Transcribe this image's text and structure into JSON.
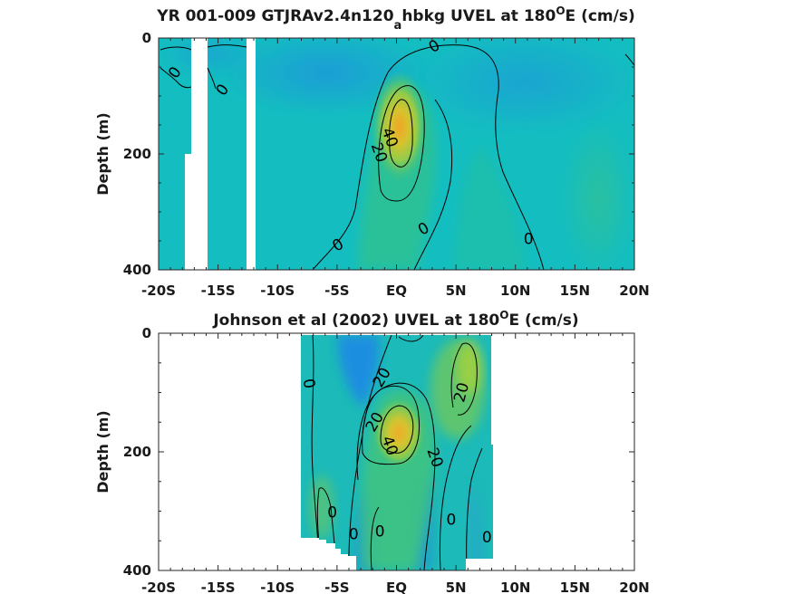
{
  "chart_data": [
    {
      "type": "heatmap",
      "title_main": "YR 001-009 GTJRAv2.4n120",
      "title_sub": "a",
      "title_rest": "hbkg UVEL at 180",
      "title_sup": "O",
      "title_end": "E (cm/s)",
      "ylabel": "Depth (m)",
      "xticks": [
        "-20S",
        "-15S",
        "-10S",
        "-5S",
        "EQ",
        "5N",
        "10N",
        "15N",
        "20N"
      ],
      "yticks": [
        "0",
        "200",
        "400"
      ],
      "xlim": [
        -20,
        20
      ],
      "ylim": [
        0,
        400
      ],
      "data_extent": [
        -20,
        20
      ],
      "missing_columns": [
        [
          -17.5,
          -16.2
        ],
        [
          -12.8,
          -12.2
        ]
      ],
      "jet_core": {
        "lat": 0.5,
        "depth": 150,
        "max_cm_s": 50
      },
      "contour_labels": [
        {
          "text": "0",
          "lat": -18.6,
          "depth": 60,
          "rot": -55
        },
        {
          "text": "0",
          "lat": -14.6,
          "depth": 90,
          "rot": -55
        },
        {
          "text": "0",
          "lat": 3.2,
          "depth": 15,
          "rot": -30
        },
        {
          "text": "0",
          "lat": -4.9,
          "depth": 358,
          "rot": -30
        },
        {
          "text": "0",
          "lat": 2.3,
          "depth": 330,
          "rot": -30
        },
        {
          "text": "0",
          "lat": 11.1,
          "depth": 348,
          "rot": 0
        },
        {
          "text": "40",
          "lat": -0.6,
          "depth": 172,
          "rot": 70
        },
        {
          "text": "20",
          "lat": -1.5,
          "depth": 198,
          "rot": 70
        }
      ]
    },
    {
      "type": "heatmap",
      "title_main": "Johnson et al (2002) UVEL at 180",
      "title_sub": "",
      "title_rest": "",
      "title_sup": "O",
      "title_end": "E (cm/s)",
      "ylabel": "Depth (m)",
      "xticks": [
        "-20S",
        "-15S",
        "-10S",
        "-5S",
        "EQ",
        "5N",
        "10N",
        "15N",
        "20N"
      ],
      "yticks": [
        "0",
        "200",
        "400"
      ],
      "xlim": [
        -20,
        20
      ],
      "ylim": [
        0,
        400
      ],
      "data_extent": [
        -8,
        8
      ],
      "jet_core": {
        "lat": 0.5,
        "depth": 165,
        "max_cm_s": 45
      },
      "contour_labels": [
        {
          "text": "0",
          "lat": -7.4,
          "depth": 85,
          "rot": 80
        },
        {
          "text": "20",
          "lat": -1.2,
          "depth": 75,
          "rot": -60
        },
        {
          "text": "20",
          "lat": -1.8,
          "depth": 150,
          "rot": -60
        },
        {
          "text": "40",
          "lat": -0.6,
          "depth": 190,
          "rot": 70
        },
        {
          "text": "20",
          "lat": 3.2,
          "depth": 210,
          "rot": 70
        },
        {
          "text": "20",
          "lat": 5.5,
          "depth": 100,
          "rot": -75
        },
        {
          "text": "0",
          "lat": -5.4,
          "depth": 303,
          "rot": 0
        },
        {
          "text": "0",
          "lat": -3.6,
          "depth": 340,
          "rot": 0
        },
        {
          "text": "0",
          "lat": -1.4,
          "depth": 335,
          "rot": 0
        },
        {
          "text": "0",
          "lat": 4.6,
          "depth": 315,
          "rot": 0
        },
        {
          "text": "0",
          "lat": 7.6,
          "depth": 345,
          "rot": 0
        }
      ]
    }
  ],
  "colors": {
    "background_field": "#13bfbf",
    "westward": "#1f9ad6",
    "eastward_low": "#2fc08c",
    "eastward_mid": "#b6d234",
    "eastward_high": "#e8b430",
    "contour": "#000000"
  }
}
